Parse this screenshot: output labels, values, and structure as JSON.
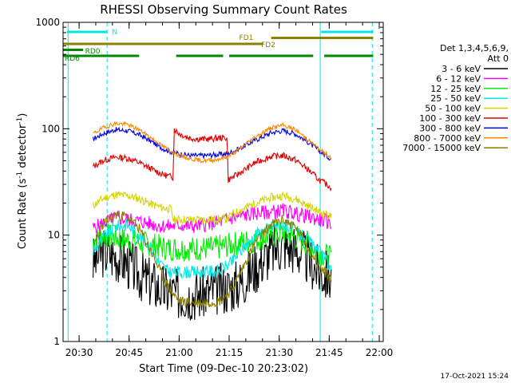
{
  "chart_data": {
    "type": "line",
    "title": "RHESSI Observing Summary Count Rates",
    "xlabel": "Start Time (09-Dec-10 20:23:02)",
    "ylabel": "Count Rate (s",
    "ylabel_sup": "-1",
    "ylabel_mid": " detector",
    "ylabel_end": ")",
    "y_scale": "log",
    "ylim": [
      1,
      1000
    ],
    "xlim": [
      20.42,
      22.02
    ],
    "y_ticks": [
      {
        "value": 1,
        "label": "1"
      },
      {
        "value": 10,
        "label": "10"
      },
      {
        "value": 100,
        "label": "100"
      },
      {
        "value": 1000,
        "label": "1000"
      }
    ],
    "x_ticks": [
      {
        "value": 20.5,
        "label": "20:30"
      },
      {
        "value": 20.75,
        "label": "20:45"
      },
      {
        "value": 21.0,
        "label": "21:00"
      },
      {
        "value": 21.25,
        "label": "21:15"
      },
      {
        "value": 21.5,
        "label": "21:30"
      },
      {
        "value": 21.75,
        "label": "21:45"
      },
      {
        "value": 22.0,
        "label": "22:00"
      }
    ],
    "legend_header": "Det 1,3,4,5,6,9,",
    "attenuator": "Att 0",
    "legend_position": "right",
    "series": [
      {
        "name": "3 - 6 keV",
        "color": "#000000",
        "seed": 3,
        "noise": 0.25,
        "points": [
          [
            20.57,
            5.5
          ],
          [
            20.62,
            7.0
          ],
          [
            20.68,
            6.5
          ],
          [
            20.74,
            5.5
          ],
          [
            20.82,
            4.0
          ],
          [
            20.9,
            3.2
          ],
          [
            20.98,
            2.8
          ],
          [
            21.04,
            2.8
          ],
          [
            21.1,
            2.8
          ],
          [
            21.16,
            3.0
          ],
          [
            21.24,
            3.2
          ],
          [
            21.3,
            3.5
          ],
          [
            21.36,
            4.5
          ],
          [
            21.42,
            6.0
          ],
          [
            21.48,
            7.5
          ],
          [
            21.52,
            8.0
          ],
          [
            21.58,
            7.5
          ],
          [
            21.64,
            6.0
          ],
          [
            21.7,
            4.5
          ],
          [
            21.76,
            4.0
          ]
        ]
      },
      {
        "name": "6 - 12 keV",
        "color": "#ff00ff",
        "seed": 5,
        "noise": 0.07,
        "points": [
          [
            20.57,
            11.5
          ],
          [
            20.62,
            13.0
          ],
          [
            20.68,
            14.5
          ],
          [
            20.74,
            14.0
          ],
          [
            20.8,
            13.5
          ],
          [
            20.88,
            12.5
          ],
          [
            20.94,
            12.0
          ],
          [
            21.0,
            12.5
          ],
          [
            21.06,
            12.0
          ],
          [
            21.12,
            12.5
          ],
          [
            21.18,
            13.0
          ],
          [
            21.24,
            14.0
          ],
          [
            21.3,
            15.0
          ],
          [
            21.38,
            16.0
          ],
          [
            21.46,
            16.5
          ],
          [
            21.52,
            17.0
          ],
          [
            21.58,
            16.0
          ],
          [
            21.64,
            15.0
          ],
          [
            21.7,
            14.0
          ],
          [
            21.76,
            13.0
          ]
        ]
      },
      {
        "name": "12 - 25 keV",
        "color": "#00ee00",
        "seed": 7,
        "noise": 0.12,
        "points": [
          [
            20.57,
            9.0
          ],
          [
            20.62,
            10.0
          ],
          [
            20.68,
            9.5
          ],
          [
            20.74,
            9.0
          ],
          [
            20.8,
            8.5
          ],
          [
            20.88,
            8.0
          ],
          [
            20.94,
            7.5
          ],
          [
            21.0,
            7.5
          ],
          [
            21.06,
            7.5
          ],
          [
            21.12,
            7.5
          ],
          [
            21.18,
            7.5
          ],
          [
            21.24,
            8.0
          ],
          [
            21.3,
            8.5
          ],
          [
            21.38,
            9.0
          ],
          [
            21.46,
            10.0
          ],
          [
            21.52,
            10.5
          ],
          [
            21.58,
            9.5
          ],
          [
            21.64,
            8.5
          ],
          [
            21.7,
            7.0
          ],
          [
            21.76,
            6.0
          ]
        ]
      },
      {
        "name": "25 - 50 keV",
        "color": "#00e5e5",
        "seed": 9,
        "noise": 0.06,
        "points": [
          [
            20.57,
            7.0
          ],
          [
            20.62,
            9.5
          ],
          [
            20.68,
            12.0
          ],
          [
            20.74,
            12.5
          ],
          [
            20.8,
            10.0
          ],
          [
            20.86,
            7.5
          ],
          [
            20.9,
            5.5
          ],
          [
            20.95,
            4.5
          ],
          [
            21.0,
            4.5
          ],
          [
            21.1,
            4.5
          ],
          [
            21.2,
            4.6
          ],
          [
            21.26,
            5.5
          ],
          [
            21.32,
            7.5
          ],
          [
            21.38,
            10.0
          ],
          [
            21.46,
            12.0
          ],
          [
            21.52,
            12.5
          ],
          [
            21.58,
            11.0
          ],
          [
            21.64,
            9.0
          ],
          [
            21.7,
            7.0
          ],
          [
            21.76,
            5.0
          ]
        ]
      },
      {
        "name": "50 - 100 keV",
        "color": "#d4d400",
        "seed": 11,
        "noise": 0.04,
        "points": [
          [
            20.57,
            19.0
          ],
          [
            20.62,
            22.0
          ],
          [
            20.68,
            24.0
          ],
          [
            20.74,
            23.5
          ],
          [
            20.8,
            22.0
          ],
          [
            20.86,
            19.5
          ],
          [
            20.92,
            18.0
          ],
          [
            20.96,
            17.5
          ],
          [
            20.97,
            14.0
          ],
          [
            21.05,
            14.0
          ],
          [
            21.15,
            14.0
          ],
          [
            21.2,
            14.2
          ],
          [
            21.24,
            14.2
          ],
          [
            21.25,
            15.0
          ],
          [
            21.3,
            17.0
          ],
          [
            21.38,
            20.0
          ],
          [
            21.46,
            22.5
          ],
          [
            21.52,
            23.5
          ],
          [
            21.58,
            22.0
          ],
          [
            21.64,
            19.0
          ],
          [
            21.7,
            16.5
          ],
          [
            21.76,
            15.0
          ]
        ]
      },
      {
        "name": "100 - 300 keV",
        "color": "#e00000",
        "seed": 13,
        "noise": 0.03,
        "points": [
          [
            20.57,
            44.0
          ],
          [
            20.62,
            50.0
          ],
          [
            20.68,
            54.0
          ],
          [
            20.74,
            53.0
          ],
          [
            20.8,
            48.0
          ],
          [
            20.86,
            42.0
          ],
          [
            20.92,
            37.0
          ],
          [
            20.97,
            35.0
          ],
          [
            20.975,
            100.0
          ],
          [
            21.0,
            90.0
          ],
          [
            21.05,
            82.0
          ],
          [
            21.1,
            80.0
          ],
          [
            21.15,
            80.0
          ],
          [
            21.2,
            82.0
          ],
          [
            21.24,
            82.0
          ],
          [
            21.245,
            33.0
          ],
          [
            21.3,
            38.0
          ],
          [
            21.38,
            48.0
          ],
          [
            21.46,
            55.0
          ],
          [
            21.52,
            56.0
          ],
          [
            21.58,
            51.0
          ],
          [
            21.64,
            42.0
          ],
          [
            21.7,
            33.0
          ],
          [
            21.76,
            28.0
          ]
        ]
      },
      {
        "name": "300 - 800 keV",
        "color": "#0000e8",
        "seed": 17,
        "noise": 0.025,
        "points": [
          [
            20.57,
            80.0
          ],
          [
            20.62,
            90.0
          ],
          [
            20.68,
            98.0
          ],
          [
            20.74,
            96.0
          ],
          [
            20.8,
            88.0
          ],
          [
            20.86,
            76.0
          ],
          [
            20.92,
            65.0
          ],
          [
            20.97,
            60.0
          ],
          [
            21.0,
            58.0
          ],
          [
            21.06,
            56.0
          ],
          [
            21.12,
            56.0
          ],
          [
            21.18,
            57.0
          ],
          [
            21.24,
            58.0
          ],
          [
            21.3,
            65.0
          ],
          [
            21.38,
            78.0
          ],
          [
            21.46,
            92.0
          ],
          [
            21.52,
            96.0
          ],
          [
            21.58,
            90.0
          ],
          [
            21.64,
            76.0
          ],
          [
            21.7,
            62.0
          ],
          [
            21.76,
            52.0
          ]
        ]
      },
      {
        "name": "800 - 7000 keV",
        "color": "#ff8800",
        "seed": 19,
        "noise": 0.02,
        "points": [
          [
            20.57,
            90.0
          ],
          [
            20.62,
            102.0
          ],
          [
            20.68,
            112.0
          ],
          [
            20.74,
            110.0
          ],
          [
            20.8,
            98.0
          ],
          [
            20.86,
            82.0
          ],
          [
            20.92,
            68.0
          ],
          [
            20.97,
            60.0
          ],
          [
            21.0,
            56.0
          ],
          [
            21.06,
            52.0
          ],
          [
            21.12,
            50.0
          ],
          [
            21.18,
            51.0
          ],
          [
            21.24,
            54.0
          ],
          [
            21.3,
            64.0
          ],
          [
            21.38,
            84.0
          ],
          [
            21.46,
            102.0
          ],
          [
            21.52,
            108.0
          ],
          [
            21.58,
            98.0
          ],
          [
            21.64,
            80.0
          ],
          [
            21.7,
            64.0
          ],
          [
            21.76,
            54.0
          ]
        ]
      },
      {
        "name": "7000 - 15000 keV",
        "color": "#8b8000",
        "seed": 23,
        "noise": 0.05,
        "points": [
          [
            20.57,
            8.0
          ],
          [
            20.62,
            12.5
          ],
          [
            20.68,
            15.5
          ],
          [
            20.74,
            15.0
          ],
          [
            20.8,
            11.5
          ],
          [
            20.86,
            7.0
          ],
          [
            20.92,
            4.0
          ],
          [
            20.97,
            2.8
          ],
          [
            21.0,
            2.4
          ],
          [
            21.1,
            2.3
          ],
          [
            21.2,
            2.4
          ],
          [
            21.26,
            3.0
          ],
          [
            21.32,
            5.0
          ],
          [
            21.38,
            8.5
          ],
          [
            21.46,
            12.5
          ],
          [
            21.52,
            14.0
          ],
          [
            21.58,
            12.0
          ],
          [
            21.64,
            8.0
          ],
          [
            21.7,
            5.0
          ],
          [
            21.76,
            4.0
          ]
        ]
      }
    ],
    "vertical_lines": [
      {
        "x": 20.445,
        "style": "solid",
        "color": "#00e5e5"
      },
      {
        "x": 20.64,
        "style": "dashed",
        "color": "#00e5e5"
      },
      {
        "x": 21.705,
        "style": "solid",
        "color": "#00e5e5"
      },
      {
        "x": 21.965,
        "style": "dashed",
        "color": "#00e5e5"
      }
    ],
    "flag_bars": [
      {
        "label": "N",
        "color": "#00e5e5",
        "ratio": 0.85,
        "segments": [
          [
            20.44,
            20.64
          ],
          [
            21.71,
            21.97
          ]
        ]
      },
      {
        "label": "FD1",
        "color": "#8b8000",
        "ratio": 0.75,
        "segments": [
          [
            21.46,
            21.97
          ]
        ]
      },
      {
        "label": "FD2",
        "color": "#8b8000",
        "ratio": 0.65,
        "segments": [
          [
            20.42,
            21.42
          ]
        ]
      },
      {
        "label": "RD0",
        "color": "#008800",
        "ratio": 0.55,
        "segments": [
          [
            20.42,
            20.52
          ]
        ]
      },
      {
        "label": "RD6",
        "color": "#008800",
        "ratio": 0.45,
        "segments": [
          [
            20.42,
            20.8
          ],
          [
            20.985,
            21.22
          ],
          [
            21.25,
            21.67
          ],
          [
            21.725,
            21.97
          ]
        ]
      }
    ]
  },
  "footer": {
    "date_stamp": "17-Oct-2021 15:24"
  }
}
